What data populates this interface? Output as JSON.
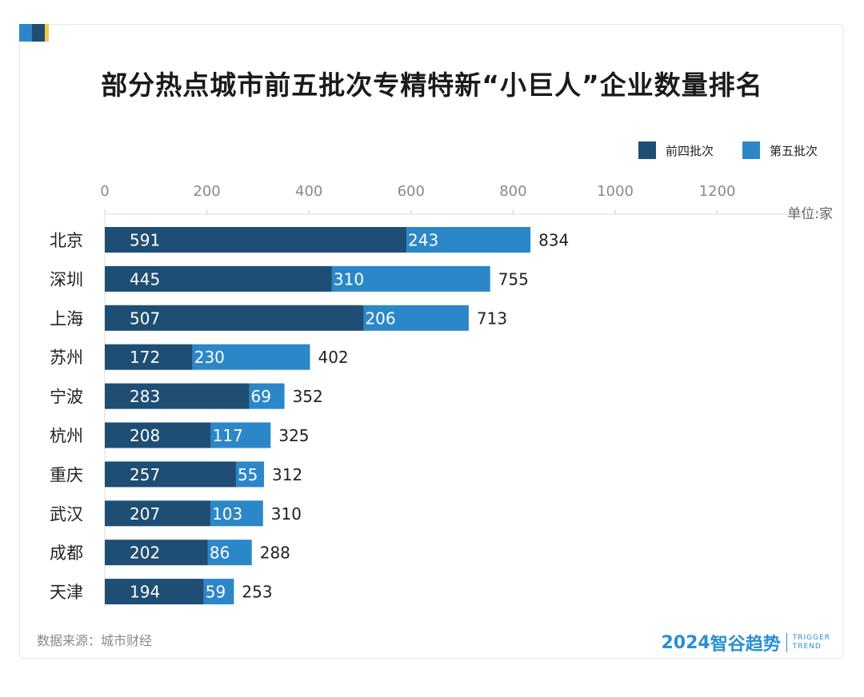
{
  "chart_data": {
    "type": "bar",
    "orientation": "horizontal",
    "stacked": true,
    "title": "部分热点城市前五批次专精特新“小巨人”企业数量排名",
    "unit_label": "单位:家",
    "x_ticks": [
      "0",
      "200",
      "400",
      "600",
      "800",
      "1000",
      "1200"
    ],
    "xlim": [
      0,
      1300
    ],
    "grid": false,
    "legend_position": "top-right",
    "categories": [
      "北京",
      "深圳",
      "上海",
      "苏州",
      "宁波",
      "杭州",
      "重庆",
      "武汉",
      "成都",
      "天津"
    ],
    "series": [
      {
        "name": "前四批次",
        "color": "#1f4e74",
        "values": [
          591,
          445,
          507,
          172,
          283,
          208,
          257,
          207,
          202,
          194
        ]
      },
      {
        "name": "第五批次",
        "color": "#2b87c8",
        "values": [
          243,
          310,
          206,
          230,
          69,
          117,
          55,
          103,
          86,
          59
        ]
      }
    ],
    "totals": [
      834,
      755,
      713,
      402,
      352,
      325,
      312,
      310,
      288,
      253
    ]
  },
  "footer": {
    "source": "数据来源：城市财经",
    "brand_year": "2024",
    "brand_cn": "智谷趋势",
    "brand_en_1": "TRIGGER",
    "brand_en_2": "TREND",
    "brand_color": "#2a8fd3"
  },
  "colors": {
    "corner_1": "#2b87c8",
    "corner_2": "#1f4e74",
    "corner_3": "#f2c94c"
  }
}
